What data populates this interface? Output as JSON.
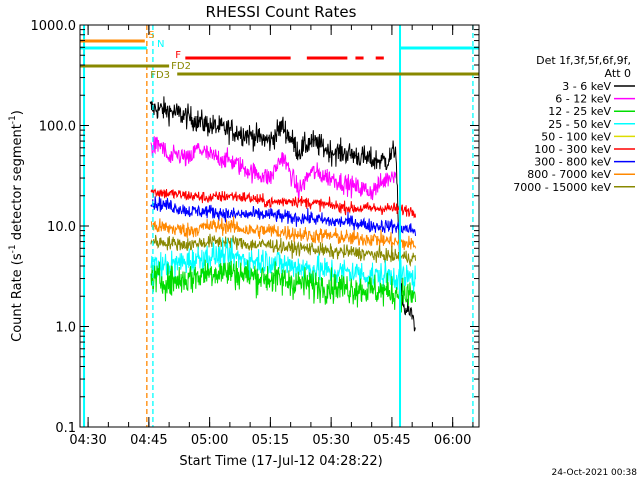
{
  "chart_data": {
    "type": "line",
    "title": "RHESSI Count Rates",
    "xlabel": "Start Time (17-Jul-12 04:28:22)",
    "ylabel_parts": [
      "Count Rate (s",
      "-1",
      " detector segment",
      "-1",
      ")"
    ],
    "yscale": "log",
    "ylim": [
      0.1,
      1000
    ],
    "xlim": [
      "04:28:00",
      "06:06:30"
    ],
    "x_ticks": [
      "04:30",
      "04:45",
      "05:00",
      "05:15",
      "05:30",
      "05:45",
      "06:00"
    ],
    "y_ticks": [
      "0.1",
      "1.0",
      "10.0",
      "100.0",
      "1000.0"
    ],
    "legend": {
      "placement": "right",
      "header": [
        "Det 1f,3f,5f,6f,9f,",
        "Att 0"
      ],
      "entries": [
        {
          "label": "3 - 6 keV",
          "color": "#000000"
        },
        {
          "label": "6 - 12 keV",
          "color": "#ff00ff"
        },
        {
          "label": "12 - 25 keV",
          "color": "#00dd00"
        },
        {
          "label": "25 - 50 keV",
          "color": "#00ffff"
        },
        {
          "label": "50 - 100 keV",
          "color": "#dddd00"
        },
        {
          "label": "100 - 300 keV",
          "color": "#ff0000"
        },
        {
          "label": "300 - 800 keV",
          "color": "#0000ff"
        },
        {
          "label": "800 - 7000 keV",
          "color": "#ff8800"
        },
        {
          "label": "7000 - 15000 keV",
          "color": "#888800"
        }
      ]
    },
    "series": [
      {
        "name": "3 - 6 keV",
        "color": "#000000",
        "noise": 0.12,
        "x": [
          "04:45:20",
          "04:50",
          "04:55",
          "05:00",
          "05:05",
          "05:10",
          "05:15",
          "05:18",
          "05:22",
          "05:25",
          "05:30",
          "05:35",
          "05:40",
          "05:44",
          "05:46",
          "05:47",
          "05:48",
          "05:50",
          "05:50:50"
        ],
        "y": [
          150,
          140,
          120,
          100,
          90,
          80,
          70,
          100,
          55,
          70,
          55,
          52,
          45,
          45,
          60,
          3,
          1.5,
          1.3,
          1.0
        ]
      },
      {
        "name": "6 - 12 keV",
        "color": "#ff00ff",
        "noise": 0.1,
        "x": [
          "04:45:30",
          "04:48",
          "04:50",
          "04:52",
          "04:55",
          "04:57",
          "05:00",
          "05:05",
          "05:10",
          "05:15",
          "05:18",
          "05:22",
          "05:25",
          "05:30",
          "05:35",
          "05:40",
          "05:44",
          "05:46"
        ],
        "y": [
          60,
          65,
          45,
          52,
          45,
          60,
          50,
          45,
          35,
          30,
          50,
          22,
          35,
          30,
          25,
          22,
          30,
          35
        ]
      },
      {
        "name": "100 - 300 keV",
        "color": "#ff0000",
        "noise": 0.06,
        "x": [
          "04:45:30",
          "04:50",
          "04:55",
          "05:00",
          "05:05",
          "05:10",
          "05:15",
          "05:20",
          "05:25",
          "05:30",
          "05:35",
          "05:40",
          "05:45",
          "05:50:50"
        ],
        "y": [
          22,
          21,
          20,
          19,
          20,
          19,
          17,
          18,
          17,
          16,
          15,
          15,
          15,
          14
        ]
      },
      {
        "name": "300 - 800 keV",
        "color": "#0000ff",
        "noise": 0.07,
        "x": [
          "04:45:30",
          "04:50",
          "04:55",
          "05:00",
          "05:05",
          "05:10",
          "05:15",
          "05:20",
          "05:25",
          "05:30",
          "05:35",
          "05:40",
          "05:45",
          "05:50:50"
        ],
        "y": [
          17,
          16,
          14,
          14,
          13,
          13,
          13,
          12,
          12,
          11,
          11,
          10,
          10,
          9
        ]
      },
      {
        "name": "800 - 7000 keV",
        "color": "#ff8800",
        "noise": 0.08,
        "x": [
          "04:45:30",
          "04:50",
          "04:55",
          "05:00",
          "05:05",
          "05:10",
          "05:15",
          "05:20",
          "05:25",
          "05:30",
          "05:35",
          "05:40",
          "05:45",
          "05:50:50"
        ],
        "y": [
          10,
          9.5,
          9,
          10,
          10,
          9,
          9,
          8.5,
          8,
          8,
          7.5,
          7.5,
          7,
          6.5
        ]
      },
      {
        "name": "7000 - 15000 keV",
        "color": "#888800",
        "noise": 0.07,
        "x": [
          "04:45:30",
          "04:50",
          "04:55",
          "05:00",
          "05:05",
          "05:10",
          "05:15",
          "05:20",
          "05:25",
          "05:30",
          "05:35",
          "05:40",
          "05:45",
          "05:50:50"
        ],
        "y": [
          7,
          6.8,
          6.5,
          7,
          7,
          6.5,
          6.5,
          6,
          6,
          5.5,
          5.5,
          5.2,
          5,
          4.8
        ]
      },
      {
        "name": "25 - 50 keV",
        "color": "#00ffff",
        "noise": 0.14,
        "x": [
          "04:45:30",
          "04:50",
          "04:55",
          "05:00",
          "05:05",
          "05:10",
          "05:15",
          "05:20",
          "05:25",
          "05:30",
          "05:35",
          "05:40",
          "05:45",
          "05:50:50"
        ],
        "y": [
          4,
          4,
          4.5,
          5,
          5,
          4.5,
          4.5,
          4,
          3.8,
          3.5,
          3.5,
          3.2,
          3.2,
          3.0
        ]
      },
      {
        "name": "12 - 25 keV",
        "color": "#00dd00",
        "noise": 0.16,
        "x": [
          "04:45:30",
          "04:50",
          "04:55",
          "05:00",
          "05:05",
          "05:10",
          "05:15",
          "05:20",
          "05:25",
          "05:30",
          "05:35",
          "05:40",
          "05:45",
          "05:50:50"
        ],
        "y": [
          3,
          2.8,
          3,
          3.5,
          3.5,
          3.2,
          3,
          2.8,
          2.6,
          2.5,
          2.4,
          2.3,
          2.2,
          2.0
        ]
      }
    ],
    "state_bars": [
      {
        "label": "S",
        "color": "#ff8800",
        "segments": [
          [
            "04:28:00",
            "04:44:00"
          ]
        ]
      },
      {
        "label": "N",
        "color": "#00ffff",
        "segments": [
          [
            "04:28:00",
            "04:44:30"
          ],
          [
            "05:47:00",
            "06:06:30"
          ]
        ]
      },
      {
        "label": "F",
        "color": "#ff0000",
        "segments": [
          [
            "04:54:00",
            "05:20:00"
          ],
          [
            "05:24:00",
            "05:34:00"
          ],
          [
            "05:36:00",
            "05:38:00"
          ],
          [
            "05:41:00",
            "05:43:00"
          ]
        ]
      },
      {
        "label": "FD2",
        "color": "#888800",
        "segments": [
          [
            "04:28:00",
            "04:50:00"
          ]
        ]
      },
      {
        "label": "FD3",
        "color": "#888800",
        "segments": [
          [
            "04:52:00",
            "06:06:30"
          ]
        ]
      }
    ],
    "vertical_markers": [
      {
        "time": "04:29:00",
        "color": "#00ffff",
        "style": "solid"
      },
      {
        "time": "04:44:30",
        "color": "#ff8800",
        "style": "dashed"
      },
      {
        "time": "04:46:00",
        "color": "#00ffff",
        "style": "dashed"
      },
      {
        "time": "05:47:00",
        "color": "#00ffff",
        "style": "solid"
      },
      {
        "time": "06:05:00",
        "color": "#00ffff",
        "style": "dashed"
      }
    ],
    "timestamp": "24-Oct-2021 00:38"
  }
}
